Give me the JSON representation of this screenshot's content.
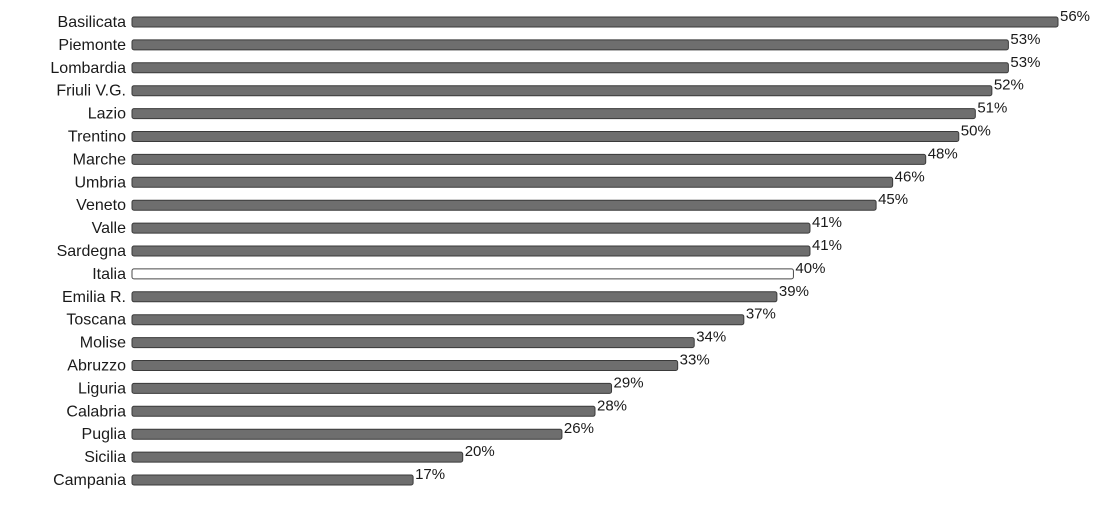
{
  "chart_data": {
    "type": "bar",
    "orientation": "horizontal",
    "categories": [
      "Basilicata",
      "Piemonte",
      "Lombardia",
      "Friuli V.G.",
      "Lazio",
      "Trentino",
      "Marche",
      "Umbria",
      "Veneto",
      "Valle",
      "Sardegna",
      "Italia",
      "Emilia R.",
      "Toscana",
      "Molise",
      "Abruzzo",
      "Liguria",
      "Calabria",
      "Puglia",
      "Sicilia",
      "Campania"
    ],
    "values": [
      56,
      53,
      53,
      52,
      51,
      50,
      48,
      46,
      45,
      41,
      41,
      40,
      39,
      37,
      34,
      33,
      29,
      28,
      26,
      20,
      17
    ],
    "value_labels": [
      "56%",
      "53%",
      "53%",
      "52%",
      "51%",
      "50%",
      "48%",
      "46%",
      "45%",
      "41%",
      "41%",
      "40%",
      "39%",
      "37%",
      "34%",
      "33%",
      "29%",
      "28%",
      "26%",
      "20%",
      "17%"
    ],
    "highlight_category": "Italia",
    "xlim": [
      0,
      56
    ],
    "title": "",
    "xlabel": "",
    "ylabel": "",
    "grid": false,
    "colors": {
      "bar": "#6e6e6e",
      "bar_edge": "#3a3a3a",
      "highlight": "#ffffff",
      "highlight_edge": "#4a4a4a"
    }
  }
}
